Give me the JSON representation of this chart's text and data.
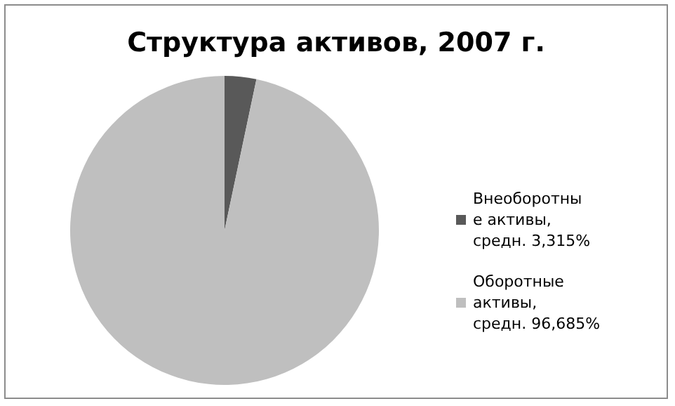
{
  "chart_data": {
    "type": "pie",
    "title": "Структура активов, 2007 г.",
    "categories": [
      "Внеоборотные активы, средн. 3,315%",
      "Оборотные активы, средн. 96,685%"
    ],
    "values": [
      3.315,
      96.685
    ],
    "colors": [
      "#595959",
      "#bfbfbf"
    ],
    "legend": "right"
  }
}
